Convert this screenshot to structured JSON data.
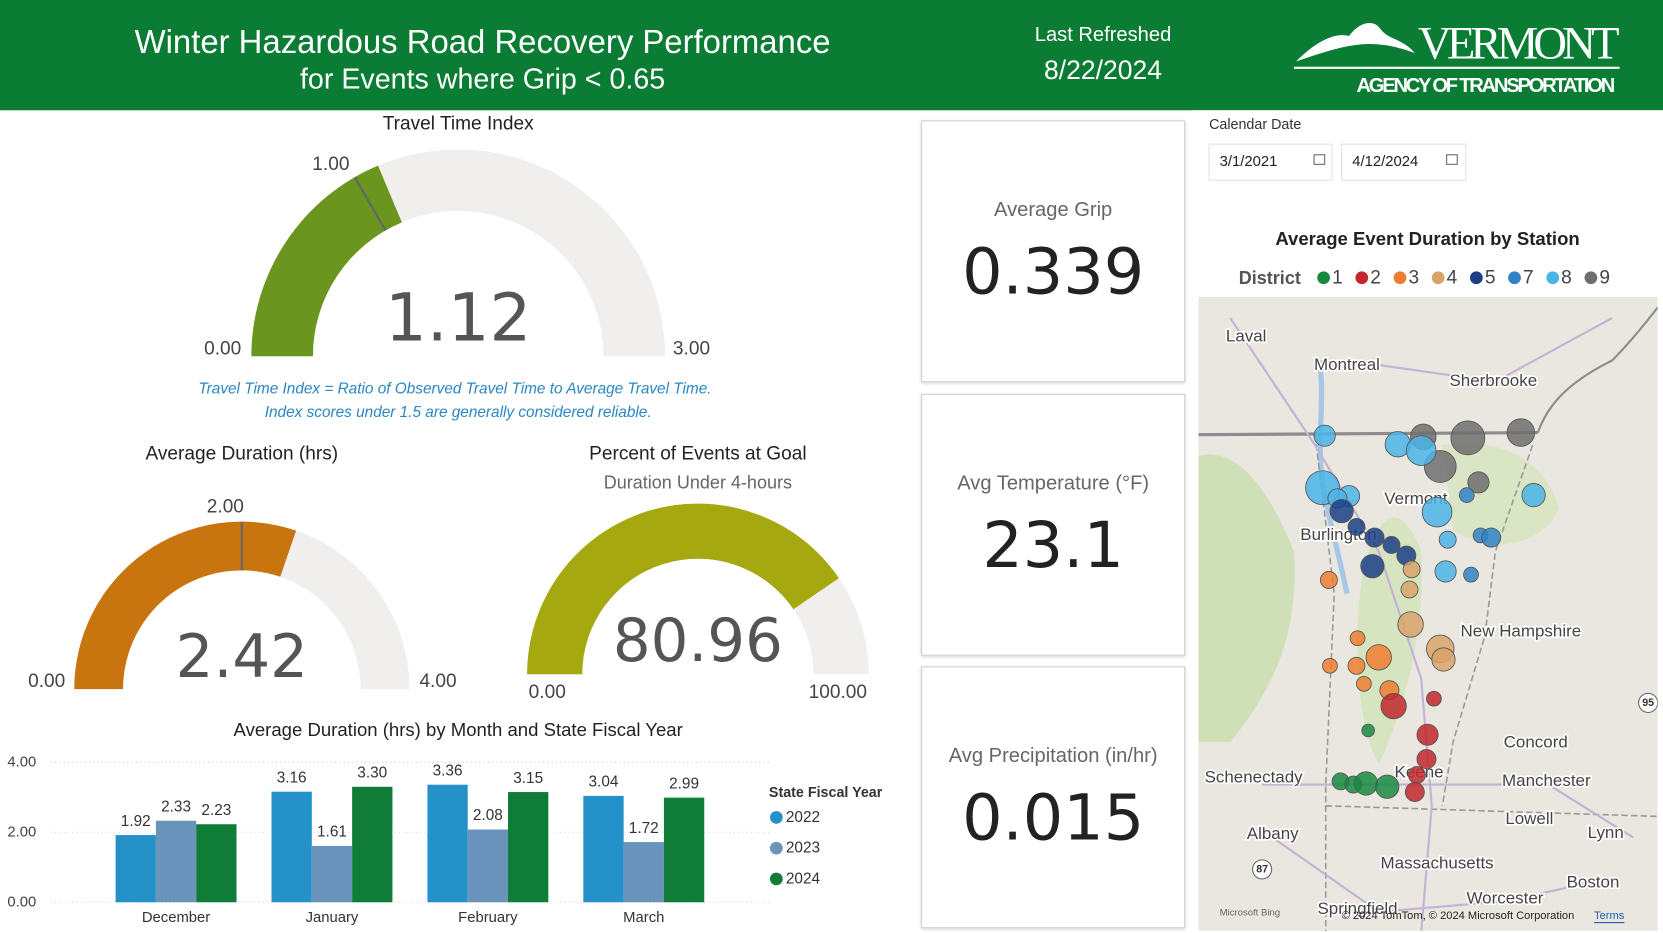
{
  "header": {
    "title": "Winter Hazardous Road Recovery Performance",
    "subtitle": "for Events where Grip < 0.65",
    "refreshed_label": "Last Refreshed",
    "refreshed_date": "8/22/2024",
    "logo_title": "VERMONT",
    "logo_subtitle": "AGENCY OF TRANSPORTATION"
  },
  "gauges": [
    {
      "title": "Travel Time Index",
      "min": {
        "value": 0,
        "label": "0.00"
      },
      "max": {
        "value": 3,
        "label": "3.00"
      },
      "target": {
        "value": 1,
        "label": "1.00"
      },
      "value": 1.12,
      "color": "#6a961f"
    },
    {
      "title": "Average Duration (hrs)",
      "min": {
        "value": 0,
        "label": "0.00"
      },
      "max": {
        "value": 4,
        "label": "4.00"
      },
      "target": {
        "value": 2,
        "label": "2.00"
      },
      "value": 2.42,
      "color": "#c8740f"
    },
    {
      "title": "Percent of Events at Goal",
      "subtitle": "Duration Under 4-hours",
      "min": {
        "value": 0,
        "label": "0.00"
      },
      "max": {
        "value": 100,
        "label": "100.00"
      },
      "value": 80.96,
      "color": "#a5a80f"
    }
  ],
  "note": [
    "Travel Time Index = Ratio of Observed Travel Time to Average Travel Time.",
    "Index scores under 1.5 are generally considered reliable."
  ],
  "cards": [
    {
      "title": "Average Grip",
      "value": 0.339
    },
    {
      "title": "Avg Temperature (°F)",
      "value": 23.1
    },
    {
      "title": "Avg Precipitation (in/hr)",
      "value": 0.015
    }
  ],
  "filter": {
    "label": "Calendar Date",
    "start": "3/1/2021",
    "end": "4/12/2024"
  },
  "chart_data": {
    "type": "bar",
    "title": "Average Duration (hrs) by Month and State Fiscal Year",
    "categories": [
      "December",
      "January",
      "February",
      "March"
    ],
    "legend_title": "State Fiscal Year",
    "series": [
      {
        "name": "2022",
        "color": "#2491c9",
        "values": [
          1.92,
          3.16,
          3.36,
          3.04
        ],
        "value_labels": [
          "1.92",
          "3.16",
          "3.36",
          "3.04"
        ]
      },
      {
        "name": "2023",
        "color": "#6b94bd",
        "values": [
          2.33,
          1.61,
          2.08,
          1.72
        ],
        "value_labels": [
          "2.33",
          "1.61",
          "2.08",
          "1.72"
        ]
      },
      {
        "name": "2024",
        "color": "#0f7d38",
        "values": [
          2.23,
          3.3,
          3.15,
          2.99
        ],
        "value_labels": [
          "2.23",
          "3.30",
          "3.15",
          "2.99"
        ]
      }
    ],
    "ylim": [
      0,
      4
    ],
    "yticks": [
      {
        "value": 0,
        "label": "0.00"
      },
      {
        "value": 2,
        "label": "2.00"
      },
      {
        "value": 4,
        "label": "4.00"
      }
    ],
    "grid": true
  },
  "map": {
    "title": "Average Event Duration by Station",
    "legend_title": "District",
    "districts": [
      {
        "name": "1",
        "color": "#17893e"
      },
      {
        "name": "2",
        "color": "#c1272d"
      },
      {
        "name": "3",
        "color": "#ee7d31"
      },
      {
        "name": "4",
        "color": "#d8a36a"
      },
      {
        "name": "5",
        "color": "#1b3f85"
      },
      {
        "name": "7",
        "color": "#2f82c8"
      },
      {
        "name": "8",
        "color": "#4ab4e6"
      },
      {
        "name": "9",
        "color": "#6f6f6f"
      }
    ],
    "stations": [
      {
        "district": "9",
        "duration": 2.4
      },
      {
        "district": "9",
        "duration": 3.2
      },
      {
        "district": "9",
        "duration": 2.6
      },
      {
        "district": "9",
        "duration": 3
      },
      {
        "district": "9",
        "duration": 2
      },
      {
        "district": "8",
        "duration": 2
      },
      {
        "district": "8",
        "duration": 2.4
      },
      {
        "district": "8",
        "duration": 2.8
      },
      {
        "district": "8",
        "duration": 3.2
      },
      {
        "district": "8",
        "duration": 2
      },
      {
        "district": "8",
        "duration": 1.8
      },
      {
        "district": "8",
        "duration": 2.8
      },
      {
        "district": "8",
        "duration": 2.2
      },
      {
        "district": "7",
        "duration": 1.4
      },
      {
        "district": "8",
        "duration": 1.6
      },
      {
        "district": "7",
        "duration": 1.4
      },
      {
        "district": "7",
        "duration": 1.8
      },
      {
        "district": "8",
        "duration": 2
      },
      {
        "district": "7",
        "duration": 1.4
      },
      {
        "district": "5",
        "duration": 2.2
      },
      {
        "district": "5",
        "duration": 1.6
      },
      {
        "district": "5",
        "duration": 1.8
      },
      {
        "district": "5",
        "duration": 1.6
      },
      {
        "district": "5",
        "duration": 1.8
      },
      {
        "district": "5",
        "duration": 2.2
      },
      {
        "district": "4",
        "duration": 1.6
      },
      {
        "district": "4",
        "duration": 1.6
      },
      {
        "district": "4",
        "duration": 2.4
      },
      {
        "district": "4",
        "duration": 2.6
      },
      {
        "district": "4",
        "duration": 2.2
      },
      {
        "district": "3",
        "duration": 1.6
      },
      {
        "district": "3",
        "duration": 1.4
      },
      {
        "district": "3",
        "duration": 2.4
      },
      {
        "district": "3",
        "duration": 1.6
      },
      {
        "district": "3",
        "duration": 1.4
      },
      {
        "district": "3",
        "duration": 1.4
      },
      {
        "district": "3",
        "duration": 1.8
      },
      {
        "district": "2",
        "duration": 2.4
      },
      {
        "district": "2",
        "duration": 1.4
      },
      {
        "district": "2",
        "duration": 2
      },
      {
        "district": "2",
        "duration": 1.8
      },
      {
        "district": "2",
        "duration": 1.6
      },
      {
        "district": "2",
        "duration": 1.8
      },
      {
        "district": "1",
        "duration": 1.2
      },
      {
        "district": "1",
        "duration": 1.6
      },
      {
        "district": "1",
        "duration": 1.6
      },
      {
        "district": "1",
        "duration": 2.2
      },
      {
        "district": "1",
        "duration": 2.2
      }
    ],
    "places": [
      "Laval",
      "Montreal",
      "Sherbrooke",
      "Vermont",
      "Burlington",
      "New Hampshire",
      "Concord",
      "Schenectady",
      "Keene",
      "Manchester",
      "Lowell",
      "Lynn",
      "Albany",
      "Massachusetts",
      "Boston",
      "Worcester",
      "Springfield"
    ],
    "shields": [
      "87",
      "95"
    ],
    "provider": "Microsoft Bing",
    "attribution": "© 2024 TomTom, © 2024 Microsoft Corporation",
    "terms": "Terms"
  }
}
